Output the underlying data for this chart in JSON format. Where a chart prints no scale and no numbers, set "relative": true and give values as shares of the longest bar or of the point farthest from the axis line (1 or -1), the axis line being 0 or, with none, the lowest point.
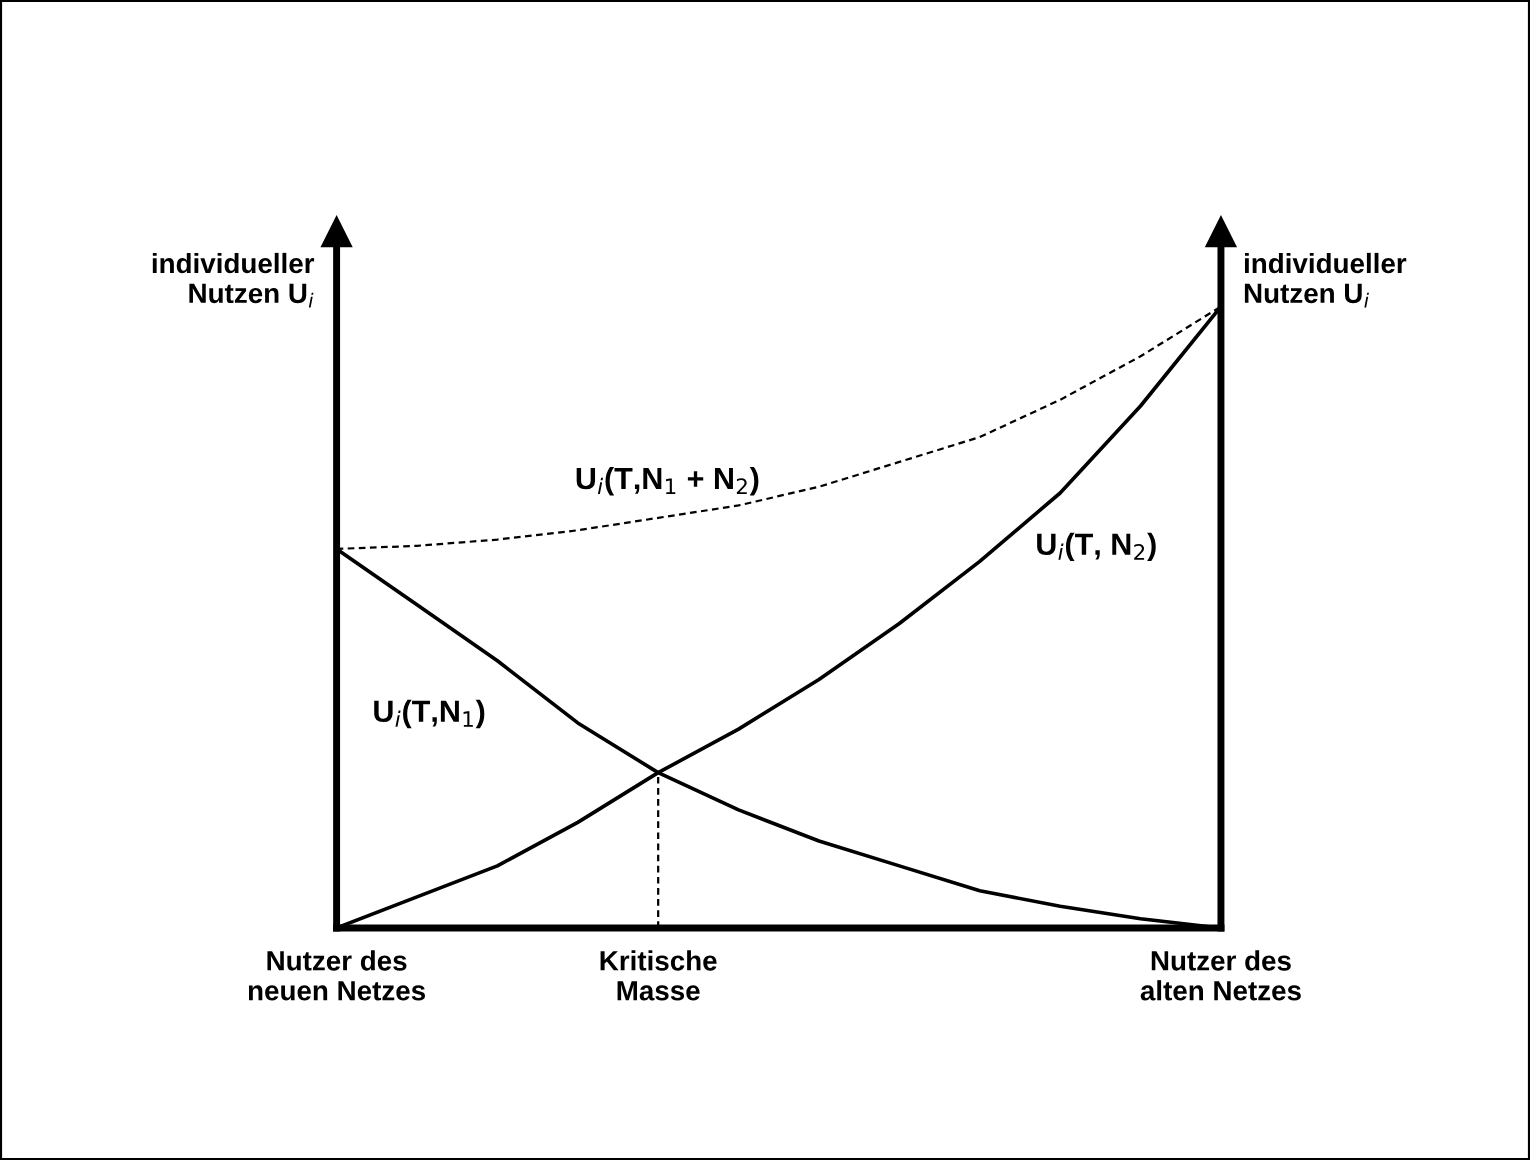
{
  "chart_data": {
    "type": "line",
    "relative": true,
    "ylabel": "individueller\nNutzen U$_{i}$",
    "y2label": "individueller\nNutzen U$_{i}$",
    "categories": [
      "Nutzer des\nneuen Netzes",
      null,
      null,
      null,
      "Kritische\nMasse",
      null,
      null,
      null,
      null,
      null,
      null,
      "Nutzer des\nalten Netzes"
    ],
    "tick_labels": "x",
    "grid": false,
    "legend": false,
    "marker": "none",
    "ref_lines": [
      {
        "axis": "x",
        "value": "Kritische\nMasse",
        "line_style": "dashed",
        "color": "#000000"
      }
    ],
    "series": [
      {
        "name": "U$_{i}$(T,N$_{1}$ + N$_{2}$)",
        "color": "#000000",
        "line_style": "dashed",
        "values": [
          0.61,
          0.615,
          0.625,
          0.64,
          0.66,
          0.68,
          0.71,
          0.75,
          0.79,
          0.85,
          0.92,
          1
        ]
      },
      {
        "name": "U$_{i}$(T,N$_{1}$)",
        "color": "#000000",
        "line_style": "solid",
        "values": [
          0.61,
          0.52,
          0.43,
          0.33,
          0.25,
          0.19,
          0.14,
          0.1,
          0.06,
          0.035,
          0.015,
          0
        ]
      },
      {
        "name": "U$_{i}$(T, N$_{2}$)",
        "color": "#000000",
        "line_style": "solid",
        "values": [
          0,
          0.05,
          0.1,
          0.17,
          0.25,
          0.32,
          0.4,
          0.49,
          0.59,
          0.7,
          0.84,
          1
        ]
      }
    ]
  }
}
